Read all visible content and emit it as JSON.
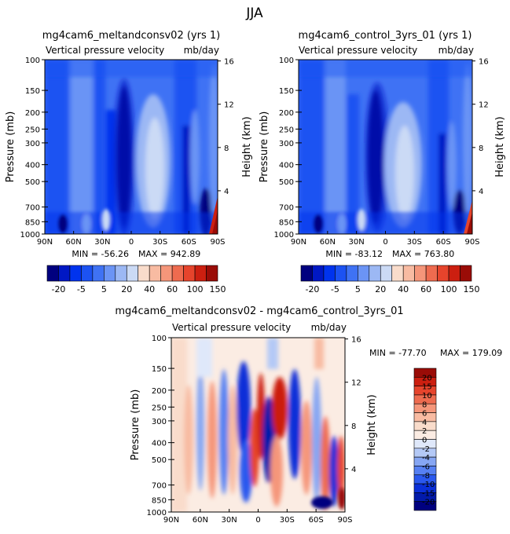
{
  "page": {
    "season_title": "JJA"
  },
  "chart_data": [
    {
      "type": "heatmap",
      "id": "left",
      "title": "mg4cam6_meltandconsv02 (yrs 1)",
      "subtitle_left": "Vertical pressure velocity",
      "subtitle_right": "mb/day",
      "ylabel": "Pressure (mb)",
      "ylabel_right": "Height (km)",
      "x_ticks": [
        "90N",
        "60N",
        "30N",
        "0",
        "30S",
        "60S",
        "90S"
      ],
      "x_range": [
        90,
        -90
      ],
      "y_ticks": [
        100,
        150,
        200,
        250,
        300,
        400,
        500,
        700,
        850,
        1000
      ],
      "y_range": [
        100,
        1000
      ],
      "height_ticks": [
        16,
        12,
        8,
        4
      ],
      "min_label": "MIN = -56.26",
      "max_label": "MAX = 942.89",
      "colorbar": {
        "orientation": "horizontal",
        "labels": [
          "-20",
          "-5",
          "5",
          "20",
          "40",
          "60",
          "100",
          "150"
        ],
        "colors": [
          "#00007f",
          "#0018c4",
          "#0033ee",
          "#1c52f2",
          "#3f72f4",
          "#6b94f5",
          "#9cb8f4",
          "#cbdaf5",
          "#f9dccb",
          "#f8bba2",
          "#f5967a",
          "#ee6b4f",
          "#e6442c",
          "#cc1f10",
          "#9a0c07"
        ]
      }
    },
    {
      "type": "heatmap",
      "id": "right",
      "title": "mg4cam6_control_3yrs_01 (yrs 1)",
      "subtitle_left": "Vertical pressure velocity",
      "subtitle_right": "mb/day",
      "ylabel": "Pressure (mb)",
      "ylabel_right": "Height (km)",
      "x_ticks": [
        "90N",
        "60N",
        "30N",
        "0",
        "30S",
        "60S",
        "90S"
      ],
      "x_range": [
        90,
        -90
      ],
      "y_ticks": [
        100,
        150,
        200,
        250,
        300,
        400,
        500,
        700,
        850,
        1000
      ],
      "y_range": [
        100,
        1000
      ],
      "height_ticks": [
        16,
        12,
        8,
        4
      ],
      "min_label": "MIN = -83.12",
      "max_label": "MAX = 763.80",
      "colorbar": {
        "orientation": "horizontal",
        "labels": [
          "-20",
          "-5",
          "5",
          "20",
          "40",
          "60",
          "100",
          "150"
        ],
        "colors": [
          "#00007f",
          "#0018c4",
          "#0033ee",
          "#1c52f2",
          "#3f72f4",
          "#6b94f5",
          "#9cb8f4",
          "#cbdaf5",
          "#f9dccb",
          "#f8bba2",
          "#f5967a",
          "#ee6b4f",
          "#e6442c",
          "#cc1f10",
          "#9a0c07"
        ]
      }
    },
    {
      "type": "heatmap",
      "id": "diff",
      "title": "mg4cam6_meltandconsv02 - mg4cam6_control_3yrs_01",
      "subtitle_left": "Vertical pressure velocity",
      "subtitle_right": "mb/day",
      "ylabel": "Pressure (mb)",
      "ylabel_right": "Height (km)",
      "x_ticks": [
        "90N",
        "60N",
        "30N",
        "0",
        "30S",
        "60S",
        "90S"
      ],
      "x_range": [
        90,
        -90
      ],
      "y_ticks": [
        100,
        150,
        200,
        250,
        300,
        400,
        500,
        700,
        850,
        1000
      ],
      "y_range": [
        100,
        1000
      ],
      "height_ticks": [
        16,
        12,
        8,
        4
      ],
      "min_label": "MIN = -77.70",
      "max_label": "MAX = 179.09",
      "colorbar": {
        "orientation": "vertical",
        "labels": [
          "20",
          "15",
          "10",
          "8",
          "6",
          "4",
          "2",
          "0",
          "-2",
          "-4",
          "-6",
          "-8",
          "-10",
          "-15",
          "-20"
        ],
        "colors": [
          "#9a0c07",
          "#cc1f10",
          "#e6442c",
          "#ee6b4f",
          "#f5967a",
          "#f8bba2",
          "#f9dccb",
          "#fbece3",
          "#dfe8fa",
          "#b4c9f6",
          "#86a6f3",
          "#5680f2",
          "#2a58ee",
          "#0a2fd8",
          "#021aaa",
          "#00007f"
        ]
      }
    }
  ]
}
